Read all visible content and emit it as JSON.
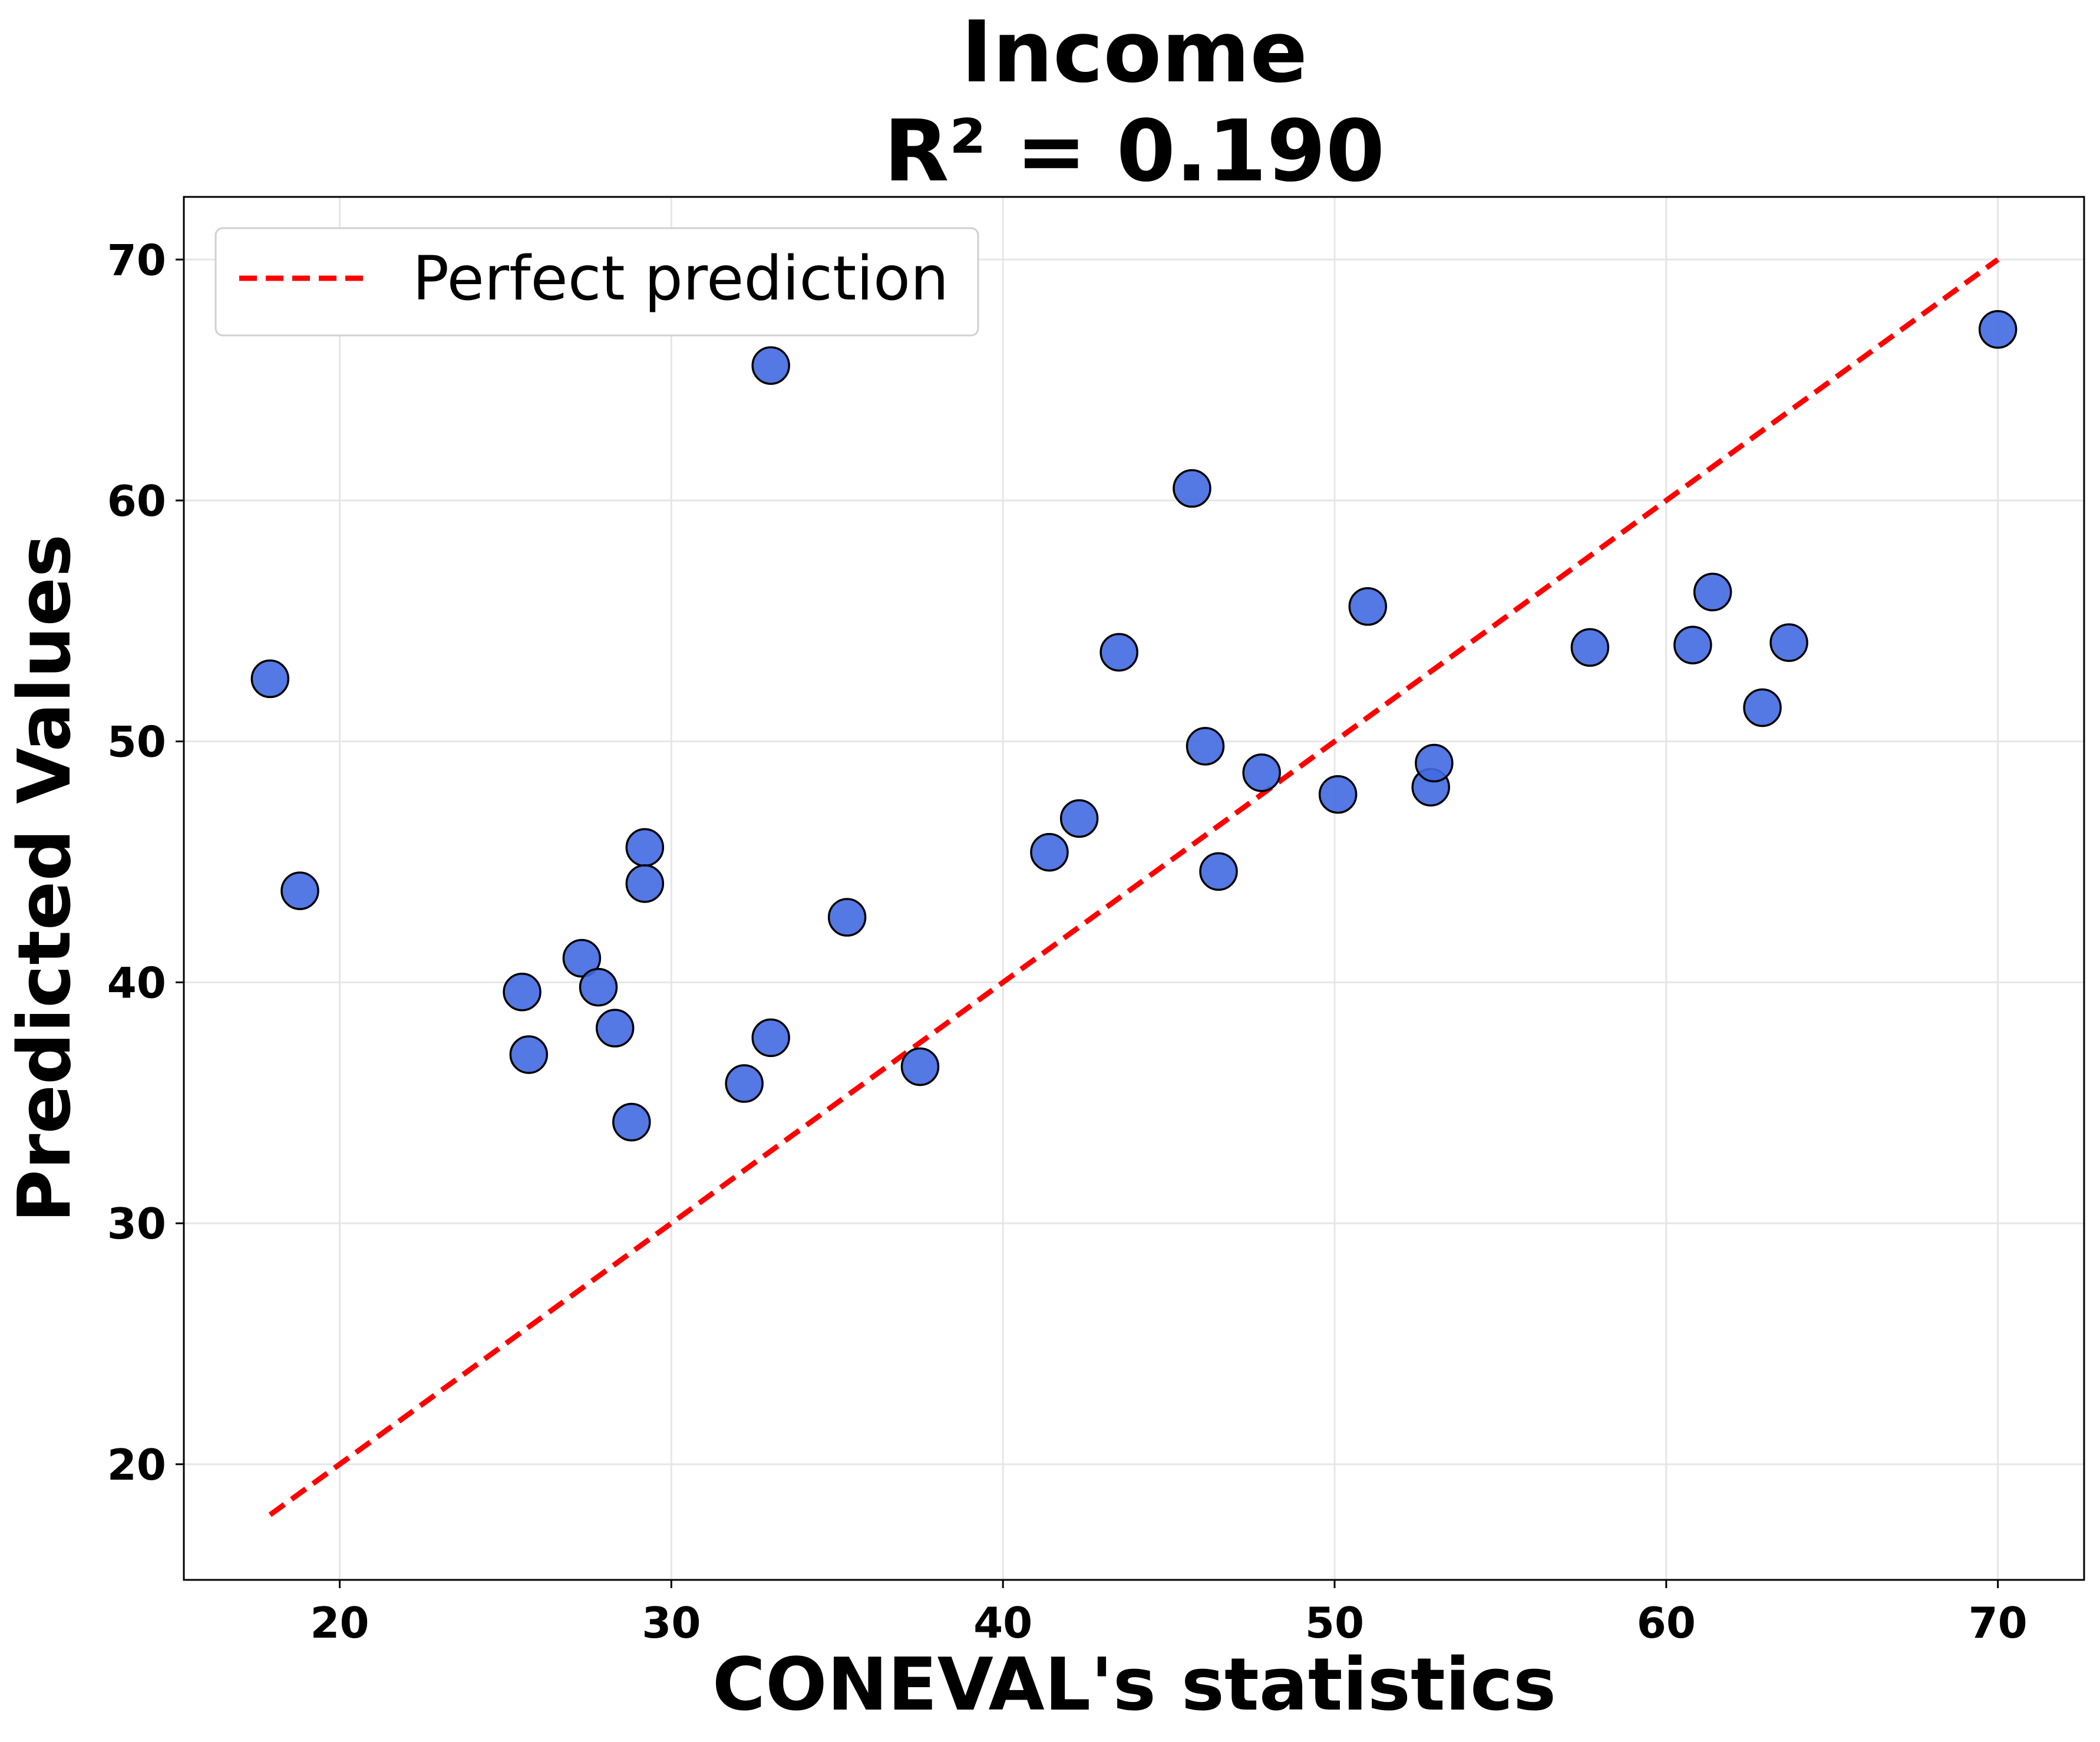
{
  "chart_data": {
    "type": "scatter",
    "title_line1": "Income",
    "title_line2": "R² = 0.190",
    "xlabel": "CONEVAL's statistics",
    "ylabel": "Predicted Values",
    "xlim": [
      15.3,
      72.6
    ],
    "ylim": [
      15.2,
      72.6
    ],
    "xticks": [
      20,
      30,
      40,
      50,
      60,
      70
    ],
    "yticks": [
      20,
      30,
      40,
      50,
      60,
      70
    ],
    "grid": true,
    "legend": {
      "position": "top-left",
      "entries": [
        "Perfect prediction"
      ]
    },
    "reference_line": {
      "name": "Perfect prediction",
      "x": [
        17.9,
        70.0
      ],
      "y": [
        17.9,
        70.0
      ],
      "color": "#ff0000",
      "style": "dashed"
    },
    "point_color": "#4169e1",
    "points": [
      {
        "x": 17.9,
        "y": 52.6
      },
      {
        "x": 18.8,
        "y": 43.8
      },
      {
        "x": 25.5,
        "y": 39.6
      },
      {
        "x": 25.7,
        "y": 37.0
      },
      {
        "x": 27.3,
        "y": 41.0
      },
      {
        "x": 27.8,
        "y": 39.8
      },
      {
        "x": 28.3,
        "y": 38.1
      },
      {
        "x": 28.8,
        "y": 34.2
      },
      {
        "x": 29.2,
        "y": 45.6
      },
      {
        "x": 29.2,
        "y": 44.1
      },
      {
        "x": 32.2,
        "y": 35.8
      },
      {
        "x": 33.0,
        "y": 65.6
      },
      {
        "x": 33.0,
        "y": 37.7
      },
      {
        "x": 35.3,
        "y": 42.7
      },
      {
        "x": 37.5,
        "y": 36.5
      },
      {
        "x": 41.4,
        "y": 45.4
      },
      {
        "x": 42.3,
        "y": 46.8
      },
      {
        "x": 43.5,
        "y": 53.7
      },
      {
        "x": 45.7,
        "y": 60.5
      },
      {
        "x": 46.1,
        "y": 49.8
      },
      {
        "x": 46.5,
        "y": 44.6
      },
      {
        "x": 47.8,
        "y": 48.7
      },
      {
        "x": 50.1,
        "y": 47.8
      },
      {
        "x": 51.0,
        "y": 55.6
      },
      {
        "x": 52.9,
        "y": 48.1
      },
      {
        "x": 53.0,
        "y": 49.1
      },
      {
        "x": 57.7,
        "y": 53.9
      },
      {
        "x": 60.8,
        "y": 54.0
      },
      {
        "x": 61.4,
        "y": 56.2
      },
      {
        "x": 62.9,
        "y": 51.4
      },
      {
        "x": 63.7,
        "y": 54.1
      },
      {
        "x": 70.0,
        "y": 67.1
      }
    ]
  }
}
